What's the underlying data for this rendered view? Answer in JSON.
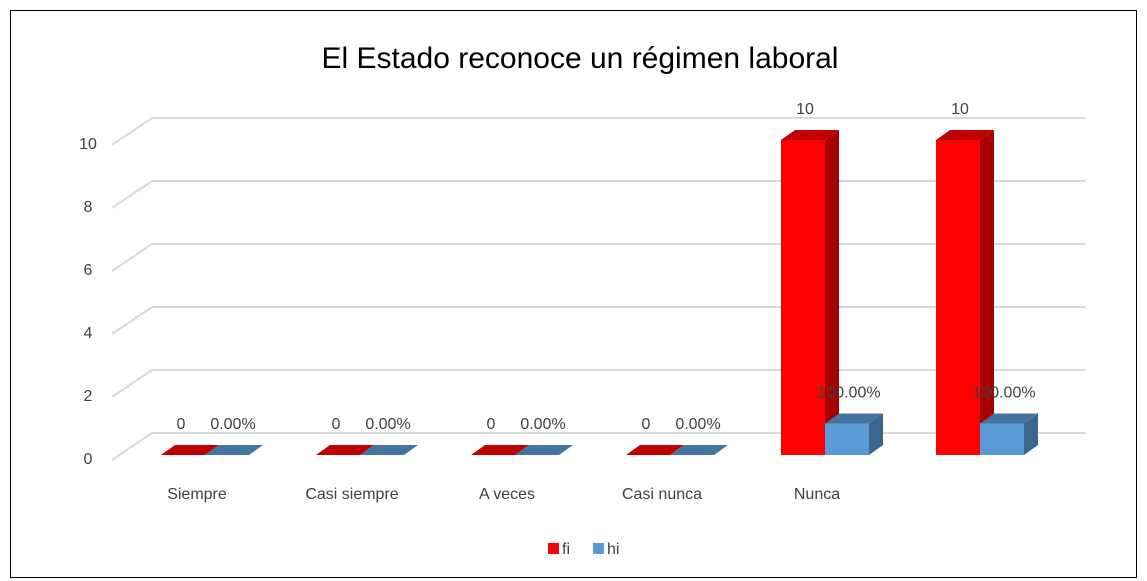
{
  "chart_data": {
    "type": "bar3d",
    "title": "El Estado reconoce un régimen laboral",
    "categories": [
      "Siempre",
      "Casi siempre",
      "A veces",
      "Casi nunca",
      "Nunca",
      null
    ],
    "series": [
      {
        "name": "fi",
        "color": "#ff0000",
        "values": [
          0,
          0,
          0,
          0,
          10,
          10
        ]
      },
      {
        "name": "hi",
        "color": "#5b9bd5",
        "values": [
          0,
          0,
          0,
          0,
          1,
          1
        ],
        "value_labels": [
          "0.00%",
          "0.00%",
          "0.00%",
          "0.00%",
          "100.00%",
          "100.00%"
        ]
      }
    ],
    "ylim": [
      0,
      10
    ],
    "yticks": [
      0,
      2,
      4,
      6,
      8,
      10
    ],
    "grid": true,
    "legend": "bottom"
  }
}
